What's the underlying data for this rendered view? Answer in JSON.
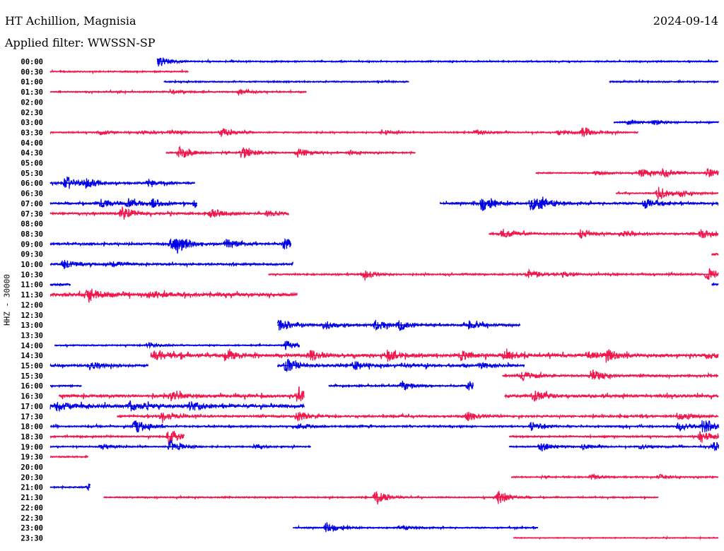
{
  "header": {
    "station": "HT Achillion, Magnisia",
    "filter": "Applied filter: WWSSN-SP",
    "date": "2024-09-14"
  },
  "chart_data": {
    "type": "line",
    "title": "HT Achillion, Magnisia",
    "ylabel": "HHZ - 30000",
    "x_unit": "minutes within row",
    "x_range": [
      0,
      30
    ],
    "colors": {
      "even": "#0000e6",
      "odd": "#f0164c"
    },
    "rows": [
      {
        "label": "00:00",
        "noise": 1,
        "segments": [
          {
            "start": 4.8,
            "end": 30,
            "bursts": [
              [
                4.8,
                3
              ]
            ]
          }
        ]
      },
      {
        "label": "00:30",
        "noise": 1,
        "segments": [
          {
            "start": 0,
            "end": 6.2,
            "bursts": []
          }
        ]
      },
      {
        "label": "01:00",
        "noise": 1,
        "segments": [
          {
            "start": 5.1,
            "end": 16.1,
            "bursts": []
          },
          {
            "start": 25.1,
            "end": 30,
            "bursts": []
          }
        ]
      },
      {
        "label": "01:30",
        "noise": 1,
        "segments": [
          {
            "start": 0,
            "end": 11.5,
            "bursts": [
              [
                5.4,
                1
              ],
              [
                8.5,
                1
              ]
            ]
          }
        ]
      },
      {
        "label": "02:00",
        "noise": 0,
        "segments": []
      },
      {
        "label": "02:30",
        "noise": 0,
        "segments": []
      },
      {
        "label": "03:00",
        "noise": 1,
        "segments": [
          {
            "start": 25.3,
            "end": 30,
            "bursts": [
              [
                25.9,
                1
              ],
              [
                27.1,
                1
              ]
            ]
          }
        ]
      },
      {
        "label": "03:30",
        "noise": 1,
        "segments": [
          {
            "start": 0,
            "end": 26.4,
            "bursts": [
              [
                2.2,
                1
              ],
              [
                4.0,
                1
              ],
              [
                5.4,
                1
              ],
              [
                7.7,
                2
              ],
              [
                14.9,
                1
              ],
              [
                19.1,
                1
              ],
              [
                22.8,
                1
              ],
              [
                23.9,
                2
              ]
            ]
          }
        ]
      },
      {
        "label": "04:00",
        "noise": 0,
        "segments": []
      },
      {
        "label": "04:30",
        "noise": 1,
        "segments": [
          {
            "start": 5.2,
            "end": 16.4,
            "bursts": [
              [
                5.8,
                3
              ],
              [
                8.6,
                3
              ],
              [
                11.1,
                2
              ],
              [
                13.4,
                1
              ]
            ]
          }
        ]
      },
      {
        "label": "05:00",
        "noise": 0,
        "segments": []
      },
      {
        "label": "05:30",
        "noise": 1,
        "segments": [
          {
            "start": 21.8,
            "end": 30,
            "bursts": [
              [
                24.5,
                1
              ],
              [
                26.5,
                2
              ],
              [
                27.5,
                2
              ],
              [
                29.5,
                2
              ]
            ]
          }
        ]
      },
      {
        "label": "06:00",
        "noise": 1.5,
        "segments": [
          {
            "start": 0,
            "end": 6.5,
            "bursts": [
              [
                0.7,
                3
              ],
              [
                1.6,
                2
              ],
              [
                4.4,
                1
              ]
            ]
          }
        ]
      },
      {
        "label": "06:30",
        "noise": 1,
        "segments": [
          {
            "start": 25.4,
            "end": 30,
            "bursts": [
              [
                27.3,
                3
              ],
              [
                28.3,
                1
              ]
            ]
          }
        ]
      },
      {
        "label": "07:00",
        "noise": 1.5,
        "segments": [
          {
            "start": 0,
            "end": 6.6,
            "bursts": [
              [
                2.3,
                2
              ],
              [
                3.5,
                2
              ],
              [
                4.6,
                2
              ],
              [
                6.5,
                2
              ]
            ]
          },
          {
            "start": 17.5,
            "end": 30,
            "bursts": [
              [
                19.4,
                3
              ],
              [
                21.6,
                3
              ],
              [
                22.0,
                2
              ],
              [
                26.7,
                2
              ]
            ]
          }
        ]
      },
      {
        "label": "07:30",
        "noise": 1.5,
        "segments": [
          {
            "start": 0,
            "end": 10.7,
            "bursts": [
              [
                3.2,
                3
              ],
              [
                7.2,
                2
              ],
              [
                9.7,
                1
              ]
            ]
          }
        ]
      },
      {
        "label": "08:00",
        "noise": 0,
        "segments": []
      },
      {
        "label": "08:30",
        "noise": 1.5,
        "segments": [
          {
            "start": 19.7,
            "end": 30,
            "bursts": [
              [
                20.3,
                2
              ],
              [
                23.8,
                2
              ],
              [
                25.7,
                1
              ],
              [
                29.2,
                2
              ]
            ]
          }
        ]
      },
      {
        "label": "09:00",
        "noise": 1.5,
        "segments": [
          {
            "start": 0,
            "end": 10.8,
            "bursts": [
              [
                5.4,
                2
              ],
              [
                5.7,
                3
              ],
              [
                7.9,
                2
              ],
              [
                10.5,
                3
              ]
            ]
          }
        ]
      },
      {
        "label": "09:30",
        "noise": 2,
        "segments": [
          {
            "start": 29.7,
            "end": 30,
            "bursts": []
          }
        ]
      },
      {
        "label": "10:00",
        "noise": 1.5,
        "segments": [
          {
            "start": 0,
            "end": 10.9,
            "bursts": [
              [
                0.6,
                2
              ],
              [
                2.8,
                1
              ]
            ]
          }
        ]
      },
      {
        "label": "10:30",
        "noise": 1.2,
        "segments": [
          {
            "start": 9.8,
            "end": 30,
            "bursts": [
              [
                14.1,
                2
              ],
              [
                21.5,
                2
              ],
              [
                23.0,
                1
              ],
              [
                29.5,
                3
              ]
            ]
          }
        ]
      },
      {
        "label": "11:00",
        "noise": 1.5,
        "segments": [
          {
            "start": 0,
            "end": 0.9,
            "bursts": []
          },
          {
            "start": 29.7,
            "end": 30,
            "bursts": []
          }
        ]
      },
      {
        "label": "11:30",
        "noise": 2.5,
        "segments": [
          {
            "start": 0,
            "end": 11.1,
            "bursts": [
              [
                1.7,
                3
              ],
              [
                4.5,
                2
              ]
            ]
          }
        ]
      },
      {
        "label": "12:00",
        "noise": 0,
        "segments": []
      },
      {
        "label": "12:30",
        "noise": 0,
        "segments": []
      },
      {
        "label": "13:00",
        "noise": 1.5,
        "segments": [
          {
            "start": 10.2,
            "end": 21.1,
            "bursts": [
              [
                10.3,
                3
              ],
              [
                12.3,
                2
              ],
              [
                14.6,
                2
              ],
              [
                15.7,
                2
              ],
              [
                18.8,
                2
              ]
            ]
          }
        ]
      },
      {
        "label": "13:30",
        "noise": 0,
        "segments": []
      },
      {
        "label": "14:00",
        "noise": 1,
        "segments": [
          {
            "start": 0.2,
            "end": 11.2,
            "bursts": [
              [
                4.4,
                1
              ],
              [
                10.6,
                2
              ]
            ]
          }
        ]
      },
      {
        "label": "14:30",
        "noise": 2.2,
        "segments": [
          {
            "start": 4.5,
            "end": 30,
            "bursts": [
              [
                4.7,
                3
              ],
              [
                7.9,
                2
              ],
              [
                11.7,
                2
              ],
              [
                15.2,
                2
              ],
              [
                18.4,
                2
              ],
              [
                20.4,
                2
              ],
              [
                24.1,
                2
              ],
              [
                25.0,
                2
              ],
              [
                29.5,
                1
              ]
            ]
          }
        ]
      },
      {
        "label": "15:00",
        "noise": 1.8,
        "segments": [
          {
            "start": 0,
            "end": 4.4,
            "bursts": [
              [
                1.8,
                2
              ]
            ]
          },
          {
            "start": 10.2,
            "end": 21.3,
            "bursts": [
              [
                10.6,
                3
              ],
              [
                13.6,
                2
              ],
              [
                15.8,
                1
              ],
              [
                19.3,
                1
              ]
            ]
          }
        ]
      },
      {
        "label": "15:30",
        "noise": 1.5,
        "segments": [
          {
            "start": 20.3,
            "end": 30,
            "bursts": [
              [
                21.2,
                2
              ],
              [
                24.3,
                3
              ]
            ]
          }
        ]
      },
      {
        "label": "16:00",
        "noise": 1.2,
        "segments": [
          {
            "start": 0,
            "end": 1.4,
            "bursts": []
          },
          {
            "start": 12.5,
            "end": 19,
            "bursts": [
              [
                15.8,
                2
              ],
              [
                18.8,
                2
              ]
            ]
          }
        ]
      },
      {
        "label": "16:30",
        "noise": 2,
        "segments": [
          {
            "start": 0.4,
            "end": 11.4,
            "bursts": [
              [
                5.4,
                2
              ],
              [
                11.1,
                3
              ]
            ]
          },
          {
            "start": 20.4,
            "end": 30,
            "bursts": [
              [
                21.7,
                2
              ]
            ]
          }
        ]
      },
      {
        "label": "17:00",
        "noise": 2.5,
        "segments": [
          {
            "start": 0,
            "end": 11.4,
            "bursts": [
              [
                0.3,
                2
              ],
              [
                3.6,
                2
              ],
              [
                6.3,
                2
              ]
            ]
          }
        ]
      },
      {
        "label": "17:30",
        "noise": 1.5,
        "segments": [
          {
            "start": 3,
            "end": 30,
            "bursts": [
              [
                5.0,
                2
              ],
              [
                11.1,
                2
              ],
              [
                18.7,
                2
              ],
              [
                28.2,
                2
              ]
            ]
          }
        ]
      },
      {
        "label": "18:00",
        "noise": 1.2,
        "segments": [
          {
            "start": 0,
            "end": 30,
            "bursts": [
              [
                3.8,
                3
              ],
              [
                11.1,
                1
              ],
              [
                21.6,
                2
              ],
              [
                28.2,
                2
              ],
              [
                29.3,
                3
              ]
            ]
          }
        ]
      },
      {
        "label": "18:30",
        "noise": 1.2,
        "segments": [
          {
            "start": 0,
            "end": 6,
            "bursts": [
              [
                5.3,
                3
              ]
            ]
          },
          {
            "start": 20.6,
            "end": 30,
            "bursts": [
              [
                29.2,
                3
              ]
            ]
          }
        ]
      },
      {
        "label": "19:00",
        "noise": 1,
        "segments": [
          {
            "start": 0,
            "end": 11.7,
            "bursts": [
              [
                2.3,
                1
              ],
              [
                5.4,
                3
              ],
              [
                9.2,
                1
              ]
            ]
          },
          {
            "start": 20.6,
            "end": 30,
            "bursts": [
              [
                22.0,
                2
              ],
              [
                23.9,
                1
              ],
              [
                26.5,
                1
              ],
              [
                29.8,
                2
              ]
            ]
          }
        ]
      },
      {
        "label": "19:30",
        "noise": 1,
        "segments": [
          {
            "start": 0,
            "end": 1.7,
            "bursts": []
          }
        ]
      },
      {
        "label": "20:00",
        "noise": 0,
        "segments": []
      },
      {
        "label": "20:30",
        "noise": 1,
        "segments": [
          {
            "start": 20.7,
            "end": 30,
            "bursts": [
              [
                24.3,
                1
              ],
              [
                27.4,
                1
              ]
            ]
          }
        ]
      },
      {
        "label": "21:00",
        "noise": 1,
        "segments": [
          {
            "start": 0,
            "end": 1.8,
            "bursts": [
              [
                1.7,
                2
              ]
            ]
          }
        ]
      },
      {
        "label": "21:30",
        "noise": 1,
        "segments": [
          {
            "start": 2.4,
            "end": 27.3,
            "bursts": [
              [
                14.6,
                3
              ],
              [
                20.1,
                3
              ]
            ]
          }
        ]
      },
      {
        "label": "22:00",
        "noise": 0,
        "segments": []
      },
      {
        "label": "22:30",
        "noise": 0,
        "segments": []
      },
      {
        "label": "23:00",
        "noise": 1,
        "segments": [
          {
            "start": 10.9,
            "end": 21.9,
            "bursts": [
              [
                12.4,
                2
              ],
              [
                15.7,
                1
              ]
            ]
          }
        ]
      },
      {
        "label": "23:30",
        "noise": 0.6,
        "segments": [
          {
            "start": 20.8,
            "end": 30,
            "bursts": []
          }
        ]
      }
    ]
  }
}
